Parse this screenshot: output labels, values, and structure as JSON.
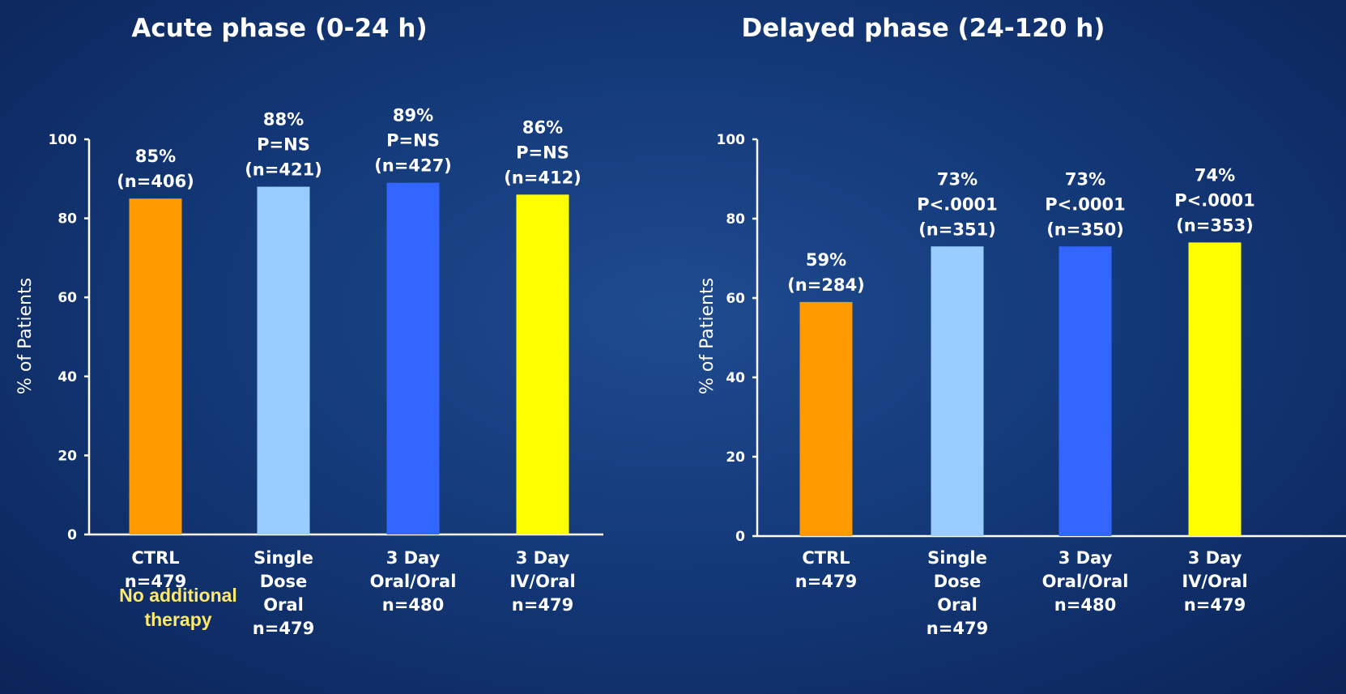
{
  "chart_data": [
    {
      "type": "bar",
      "title": "Acute phase (0-24  h)",
      "ylabel": "% of Patients",
      "ylim": [
        0,
        100
      ],
      "yticks": [
        "0",
        "20",
        "40",
        "60",
        "80",
        "100"
      ],
      "categories": [
        [
          "CTRL",
          "n=479"
        ],
        [
          "Single",
          "Dose",
          "Oral",
          "n=479"
        ],
        [
          "3 Day",
          "Oral/Oral",
          "n=480"
        ],
        [
          "3 Day",
          "IV/Oral",
          "n=479"
        ]
      ],
      "values": [
        85,
        88,
        89,
        86
      ],
      "colors": [
        "#ff9900",
        "#99ccff",
        "#3366ff",
        "#ffff00"
      ],
      "data_labels": [
        [
          "85%",
          "(n=406)"
        ],
        [
          "88%",
          "P=NS",
          "(n=421)"
        ],
        [
          "89%",
          "P=NS",
          "(n=427)"
        ],
        [
          "86%",
          "P=NS",
          "(n=412)"
        ]
      ],
      "annotation": [
        "No additional",
        "therapy"
      ],
      "grid": false
    },
    {
      "type": "bar",
      "title": "Delayed phase (24-120  h)",
      "ylabel": "% of Patients",
      "ylim": [
        0,
        100
      ],
      "yticks": [
        "0",
        "20",
        "40",
        "60",
        "80",
        "100"
      ],
      "categories": [
        [
          "CTRL",
          "n=479"
        ],
        [
          "Single",
          "Dose",
          "Oral",
          "n=479"
        ],
        [
          "3 Day",
          "Oral/Oral",
          "n=480"
        ],
        [
          "3 Day",
          "IV/Oral",
          "n=479"
        ]
      ],
      "values": [
        59,
        73,
        73,
        74
      ],
      "colors": [
        "#ff9900",
        "#99ccff",
        "#3366ff",
        "#ffff00"
      ],
      "data_labels": [
        [
          "59%",
          "(n=284)"
        ],
        [
          "73%",
          "P<.0001",
          "(n=351)"
        ],
        [
          "73%",
          "P<.0001",
          "(n=350)"
        ],
        [
          "74%",
          "P<.0001",
          "(n=353)"
        ]
      ],
      "grid": false
    }
  ]
}
